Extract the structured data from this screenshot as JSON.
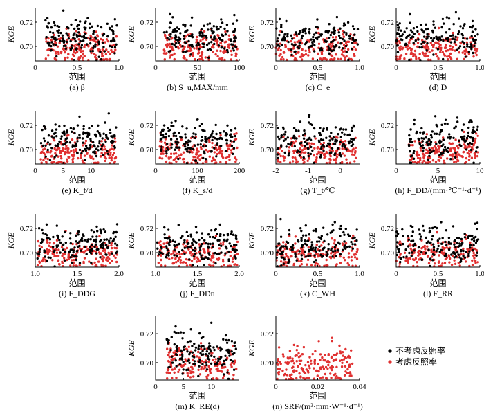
{
  "legend": {
    "items": [
      {
        "label": "不考虑反照率",
        "color": "#000000"
      },
      {
        "label": "考虑反照率",
        "color": "#e03030"
      }
    ]
  },
  "chart_data": [
    {
      "type": "scatter",
      "xlabel": "范围",
      "ylabel": "KGE",
      "caption": "(a) β",
      "xlim": [
        0,
        1
      ],
      "ylim": [
        0.688,
        0.732
      ],
      "xticks": [
        "0",
        "0.5",
        "1.0"
      ],
      "yticks": [
        "0.70",
        "0.72"
      ],
      "x_range": [
        0.12,
        0.98
      ],
      "corr_no": 0,
      "corr_yes": 0
    },
    {
      "type": "scatter",
      "xlabel": "范围",
      "ylabel": "KGE",
      "caption": "(b) S_u,MAX/mm",
      "xlim": [
        0,
        100
      ],
      "ylim": [
        0.688,
        0.732
      ],
      "xticks": [
        "0",
        "50",
        "100"
      ],
      "yticks": [
        "0.70",
        "0.72"
      ],
      "x_range": [
        10,
        98
      ],
      "corr_no": 0,
      "corr_yes": 0
    },
    {
      "type": "scatter",
      "xlabel": "范围",
      "ylabel": "KGE",
      "caption": "(c) C_e",
      "xlim": [
        0,
        1
      ],
      "ylim": [
        0.688,
        0.732
      ],
      "xticks": [
        "0",
        "0.5",
        "1.0"
      ],
      "yticks": [
        "0.70",
        "0.72"
      ],
      "x_range": [
        0.0,
        0.98
      ],
      "corr_no": 0,
      "corr_yes": 0
    },
    {
      "type": "scatter",
      "xlabel": "范围",
      "ylabel": "KGE",
      "caption": "(d) D",
      "xlim": [
        0,
        1
      ],
      "ylim": [
        0.688,
        0.732
      ],
      "xticks": [
        "0",
        "0.5",
        "1.0"
      ],
      "yticks": [
        "0.70",
        "0.72"
      ],
      "x_range": [
        0.0,
        0.98
      ],
      "corr_no": 0,
      "corr_yes": 0
    },
    {
      "type": "scatter",
      "xlabel": "范围",
      "ylabel": "KGE",
      "caption": "(e) K_f/d",
      "xlim": [
        0,
        15
      ],
      "ylim": [
        0.688,
        0.732
      ],
      "xticks": [
        "0",
        "5",
        "10"
      ],
      "yticks": [
        "0.70",
        "0.72"
      ],
      "x_range": [
        1,
        14.5
      ],
      "corr_no": 0,
      "corr_yes": 0
    },
    {
      "type": "scatter",
      "xlabel": "范围",
      "ylabel": "KGE",
      "caption": "(f) K_s/d",
      "xlim": [
        0,
        200
      ],
      "ylim": [
        0.688,
        0.732
      ],
      "xticks": [
        "0",
        "100",
        "200"
      ],
      "yticks": [
        "0.70",
        "0.72"
      ],
      "x_range": [
        10,
        195
      ],
      "corr_no": 0,
      "corr_yes": 0
    },
    {
      "type": "scatter",
      "xlabel": "范围",
      "ylabel": "KGE",
      "caption": "(g) T_t/℃",
      "xlim": [
        -2,
        0.6
      ],
      "ylim": [
        0.688,
        0.732
      ],
      "xticks": [
        "-2",
        "-1",
        "0"
      ],
      "yticks": [
        "0.70",
        "0.72"
      ],
      "x_range": [
        -1.95,
        0.5
      ],
      "corr_no": 0.2,
      "corr_yes": 0
    },
    {
      "type": "scatter",
      "xlabel": "范围",
      "ylabel": "KGE",
      "caption": "(h) F_DD/(mm·℃⁻¹·d⁻¹)",
      "xlim": [
        0,
        10
      ],
      "ylim": [
        0.688,
        0.732
      ],
      "xticks": [
        "0",
        "5",
        "10"
      ],
      "yticks": [
        "0.70",
        "0.72"
      ],
      "x_range": [
        1.5,
        9.8
      ],
      "corr_no": 0.5,
      "corr_yes": 0.5
    },
    {
      "type": "scatter",
      "xlabel": "范围",
      "ylabel": "KGE",
      "caption": "(i) F_DDG",
      "xlim": [
        1,
        2
      ],
      "ylim": [
        0.688,
        0.732
      ],
      "xticks": [
        "1.0",
        "1.5",
        "2.0"
      ],
      "yticks": [
        "0.70",
        "0.72"
      ],
      "x_range": [
        1.02,
        1.98
      ],
      "corr_no": 0,
      "corr_yes": 0
    },
    {
      "type": "scatter",
      "xlabel": "范围",
      "ylabel": "KGE",
      "caption": "(j) F_DDn",
      "xlim": [
        1,
        2
      ],
      "ylim": [
        0.688,
        0.732
      ],
      "xticks": [
        "1.0",
        "1.5",
        "2.0"
      ],
      "yticks": [
        "0.70",
        "0.72"
      ],
      "x_range": [
        1.02,
        1.98
      ],
      "corr_no": 0,
      "corr_yes": 0
    },
    {
      "type": "scatter",
      "xlabel": "范围",
      "ylabel": "KGE",
      "caption": "(k) C_WH",
      "xlim": [
        0,
        1
      ],
      "ylim": [
        0.688,
        0.732
      ],
      "xticks": [
        "0",
        "0.5",
        "1.0"
      ],
      "yticks": [
        "0.70",
        "0.72"
      ],
      "x_range": [
        0.0,
        0.98
      ],
      "corr_no": 0.4,
      "corr_yes": 0.4
    },
    {
      "type": "scatter",
      "xlabel": "范围",
      "ylabel": "KGE",
      "caption": "(l) F_RR",
      "xlim": [
        0,
        1
      ],
      "ylim": [
        0.688,
        0.732
      ],
      "xticks": [
        "0",
        "0.5",
        "1.0"
      ],
      "yticks": [
        "0.70",
        "0.72"
      ],
      "x_range": [
        0.0,
        0.98
      ],
      "corr_no": 0,
      "corr_yes": 0
    },
    {
      "type": "scatter",
      "xlabel": "范围",
      "ylabel": "KGE",
      "caption": "(m) K_RE(d)",
      "xlim": [
        0,
        15
      ],
      "ylim": [
        0.688,
        0.732
      ],
      "xticks": [
        "0",
        "5",
        "10"
      ],
      "yticks": [
        "0.70",
        "0.72"
      ],
      "x_range": [
        2,
        14.5
      ],
      "corr_no": -0.3,
      "corr_yes": -0.3
    },
    {
      "type": "scatter",
      "xlabel": "范围",
      "ylabel": "KGE",
      "caption": "(n) SRF/(m²·mm·W⁻¹·d⁻¹)",
      "xlim": [
        0,
        0.04
      ],
      "ylim": [
        0.688,
        0.732
      ],
      "xticks": [
        "0",
        "0.02",
        "0.04"
      ],
      "yticks": [
        "0.70",
        "0.72"
      ],
      "x_range": [
        0.0005,
        0.037
      ],
      "corr_no": 0,
      "corr_yes": 0,
      "no_black": true
    }
  ]
}
